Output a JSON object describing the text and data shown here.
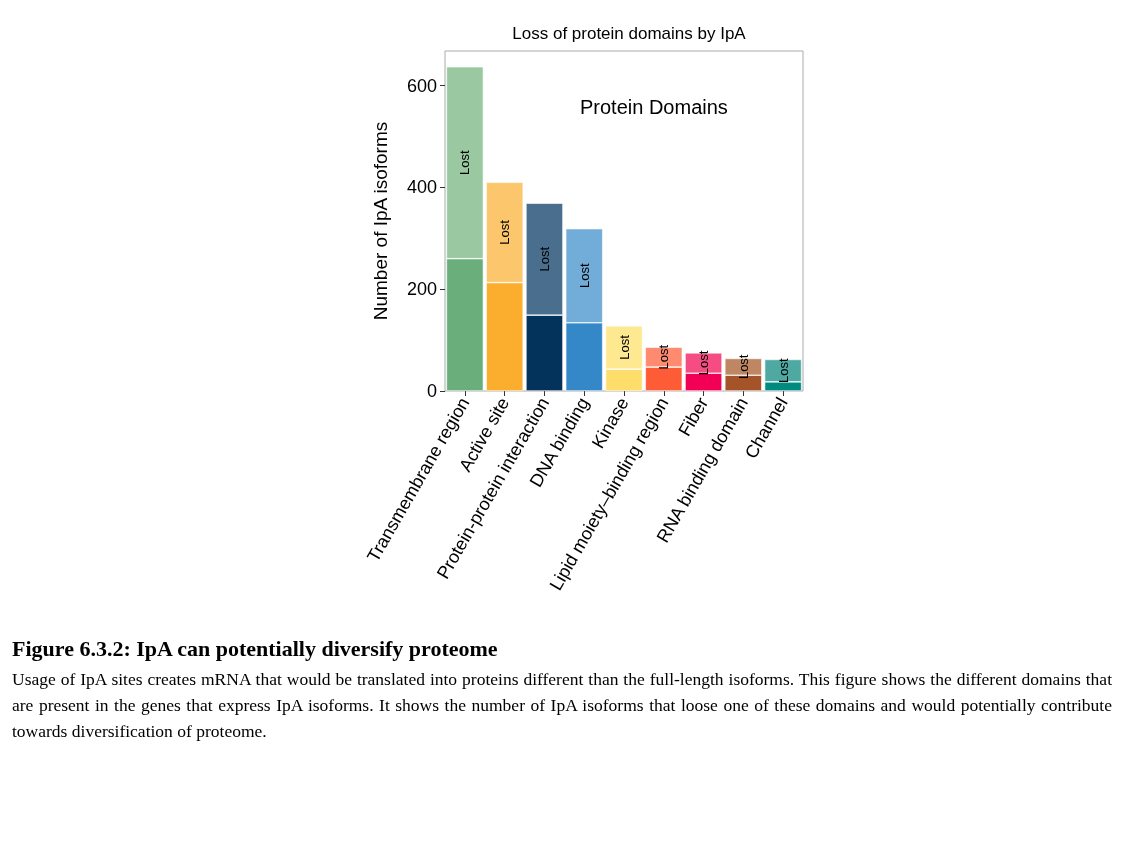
{
  "chart_data": {
    "type": "bar",
    "title": "Loss of protein domains by IpA",
    "ylabel": "Number of IpA isoforms",
    "categories": [
      "Transmembrane region",
      "Active site",
      "Protein-protein interaction",
      "DNA binding",
      "Kinase",
      "Lipid moiety–binding region",
      "Fiber",
      "RNA binding domain",
      "Channel"
    ],
    "stacked": true,
    "series": [
      {
        "colors": [
          "#69ae7b",
          "#fbae2d",
          "#03325a",
          "#3588c8",
          "#fedd6b",
          "#fe5b37",
          "#f20055",
          "#a45428",
          "#018a80"
        ],
        "values": [
          260,
          213,
          149,
          134,
          43,
          47,
          35,
          31,
          18
        ]
      },
      {
        "name": "Lost",
        "colors": [
          "#9ac8a0",
          "#fcc66c",
          "#4a6e8e",
          "#72acd9",
          "#fee890",
          "#fe8a6f",
          "#f54c82",
          "#bf8663",
          "#4ea9a3"
        ],
        "values": [
          377,
          197,
          220,
          185,
          85,
          39,
          40,
          33,
          44
        ]
      }
    ],
    "ylim": [
      0,
      668
    ],
    "yticks": [
      0,
      200,
      400,
      600
    ],
    "grid": false,
    "legend": false,
    "annotations": [
      "Protein Domains",
      "Figure 6.3.2: IpA can potentially diversify proteome",
      "Usage of IpA sites creates mRNA that would be translated into proteins different than the full-length isoforms. This figure shows the different domains that are present in the genes that express IpA isoforms. It shows the number of IpA isoforms that loose one of these domains and would potentially contribute towards diversification of proteome."
    ]
  }
}
